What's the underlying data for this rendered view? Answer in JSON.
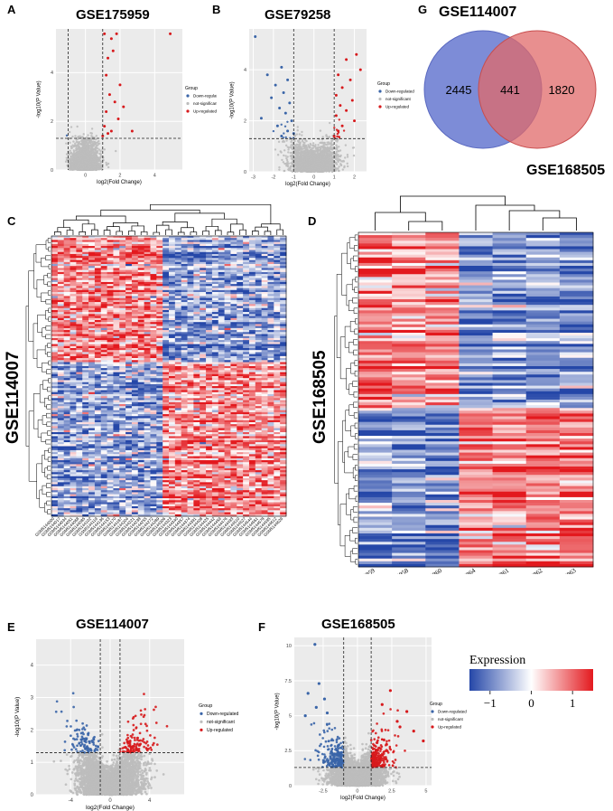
{
  "panels": {
    "A": {
      "letter": "A",
      "title": "GSE175959"
    },
    "B": {
      "letter": "B",
      "title": "GSE79258"
    },
    "G": {
      "letter": "G",
      "title_top": "GSE114007",
      "title_bottom": "GSE168505"
    },
    "C": {
      "letter": "C",
      "title": "GSE114007"
    },
    "D": {
      "letter": "D",
      "title": "GSE168505"
    },
    "E": {
      "letter": "E",
      "title": "GSE114007"
    },
    "F": {
      "letter": "F",
      "title": "GSE168505"
    }
  },
  "volcano_text": {
    "xlabel": "log2(Fold Change)",
    "ylabel": "-log10(P Value)",
    "legend_title": "Group",
    "groups": [
      "Down-regulated",
      "not-significant",
      "Up-regulated"
    ]
  },
  "colors": {
    "down": "#3a65a8",
    "ns": "#bdbdbd",
    "up": "#d7191c",
    "venn_left": "#6f7fd3",
    "venn_right": "#e06a6a",
    "heat_low": "#2547a8",
    "heat_mid": "#ffffff",
    "heat_high": "#e3191e"
  },
  "chart_data": [
    {
      "id": "A",
      "type": "scatter",
      "subtype": "volcano",
      "title": "GSE175959",
      "xlim": [
        -1.7,
        5.6
      ],
      "ylim": [
        0,
        5.8
      ],
      "xticks": [
        0,
        2,
        4
      ],
      "yticks": [
        0,
        2,
        4
      ],
      "thresholds": {
        "x": [
          -1,
          1
        ],
        "y": 1.3
      },
      "legend": "right",
      "series": [
        {
          "name": "Down-regulated",
          "values": []
        },
        {
          "name": "not-significant",
          "values": []
        },
        {
          "name": "Up-regulated",
          "values": [
            [
              1.1,
              5.6
            ],
            [
              1.5,
              5.4
            ],
            [
              1.8,
              5.6
            ],
            [
              4.9,
              5.6
            ],
            [
              1.6,
              4.9
            ],
            [
              1.3,
              4.6
            ],
            [
              1.2,
              3.9
            ],
            [
              2.0,
              3.5
            ],
            [
              1.4,
              3.1
            ],
            [
              1.7,
              2.8
            ],
            [
              2.2,
              2.6
            ],
            [
              1.2,
              2.4
            ],
            [
              1.9,
              2.1
            ],
            [
              1.1,
              1.8
            ],
            [
              1.5,
              1.6
            ],
            [
              2.7,
              1.6
            ],
            [
              1.3,
              1.5
            ],
            [
              1.0,
              1.4
            ]
          ]
        }
      ]
    },
    {
      "id": "B",
      "type": "scatter",
      "subtype": "volcano",
      "title": "GSE79258",
      "xlim": [
        -3.2,
        2.6
      ],
      "ylim": [
        0,
        5.6
      ],
      "xticks": [
        -3,
        -2,
        -1,
        0,
        1,
        2
      ],
      "yticks": [
        0,
        2,
        4
      ],
      "thresholds": {
        "x": [
          -1,
          1
        ],
        "y": 1.3
      },
      "legend": "right",
      "series": [
        {
          "name": "Down-regulated",
          "values": [
            [
              -2.9,
              5.3
            ],
            [
              -1.6,
              4.1
            ],
            [
              -2.3,
              3.8
            ],
            [
              -1.3,
              3.6
            ],
            [
              -1.9,
              3.4
            ],
            [
              -1.5,
              3.1
            ],
            [
              -2.1,
              2.9
            ],
            [
              -1.2,
              2.7
            ],
            [
              -1.7,
              2.5
            ],
            [
              -1.4,
              2.3
            ],
            [
              -2.6,
              2.1
            ],
            [
              -1.1,
              2.0
            ],
            [
              -1.8,
              1.8
            ],
            [
              -1.3,
              1.6
            ],
            [
              -1.0,
              1.5
            ],
            [
              -1.6,
              1.4
            ]
          ]
        },
        {
          "name": "not-significant",
          "values": []
        },
        {
          "name": "Up-regulated",
          "values": [
            [
              2.1,
              4.6
            ],
            [
              1.6,
              4.4
            ],
            [
              2.3,
              4.0
            ],
            [
              1.2,
              3.8
            ],
            [
              1.8,
              3.6
            ],
            [
              1.4,
              3.3
            ],
            [
              1.1,
              3.0
            ],
            [
              1.9,
              2.8
            ],
            [
              1.3,
              2.6
            ],
            [
              1.6,
              2.4
            ],
            [
              1.1,
              2.2
            ],
            [
              2.0,
              2.0
            ],
            [
              1.4,
              1.8
            ],
            [
              1.2,
              1.6
            ],
            [
              1.0,
              1.4
            ]
          ]
        }
      ]
    },
    {
      "id": "G",
      "type": "venn",
      "sets": [
        "GSE114007",
        "GSE168505"
      ],
      "values": {
        "left_only": 2445,
        "intersection": 441,
        "right_only": 1820
      }
    },
    {
      "id": "C",
      "type": "heatmap",
      "dataset": "GSE114007",
      "columns": 38,
      "column_labels_prefix": "GSM",
      "color_scale": [
        -1.5,
        1.5
      ]
    },
    {
      "id": "D",
      "type": "heatmap",
      "dataset": "GSE168505",
      "column_labels": [
        "GSM5144859",
        "GSM5144858",
        "GSM5144860",
        "GSM5144864",
        "GSM5144861",
        "GSM5144862",
        "GSM5144863"
      ],
      "color_scale": [
        -1.5,
        1.5
      ]
    },
    {
      "id": "legend",
      "type": "colorbar",
      "title": "Expression",
      "ticks": [
        "-1",
        "0",
        "1"
      ],
      "range": [
        -1.5,
        1.5
      ]
    },
    {
      "id": "E",
      "type": "scatter",
      "subtype": "volcano",
      "title": "GSE114007",
      "xlim": [
        -7.5,
        7.5
      ],
      "ylim": [
        0,
        4.8
      ],
      "xticks": [
        -4,
        0,
        4
      ],
      "yticks": [
        0,
        1,
        2,
        3,
        4
      ],
      "thresholds": {
        "x": [
          -1,
          1
        ],
        "y": 1.3
      },
      "legend": "right",
      "series": [
        {
          "name": "Down-regulated",
          "values": []
        },
        {
          "name": "not-significant",
          "values": []
        },
        {
          "name": "Up-regulated",
          "values": []
        }
      ]
    },
    {
      "id": "F",
      "type": "scatter",
      "subtype": "volcano",
      "title": "GSE168505",
      "xlim": [
        -4.6,
        5.4
      ],
      "ylim": [
        0,
        10.6
      ],
      "xticks": [
        -2.5,
        0.0,
        2.5,
        5.0
      ],
      "yticks": [
        0.0,
        2.5,
        5.0,
        7.5,
        10.0
      ],
      "thresholds": {
        "x": [
          -1,
          1
        ],
        "y": 1.3
      },
      "legend": "right",
      "series": [
        {
          "name": "Down-regulated",
          "values": [
            [
              -3.1,
              10.1
            ],
            [
              -2.8,
              7.3
            ],
            [
              -3.6,
              6.6
            ],
            [
              -2.4,
              6.2
            ],
            [
              -3.0,
              5.6
            ],
            [
              -2.2,
              5.2
            ],
            [
              -3.8,
              5.0
            ]
          ]
        },
        {
          "name": "not-significant",
          "values": []
        },
        {
          "name": "Up-regulated",
          "values": [
            [
              2.4,
              6.8
            ],
            [
              3.6,
              5.3
            ],
            [
              1.8,
              5.8
            ],
            [
              4.8,
              3.2
            ],
            [
              2.9,
              4.6
            ],
            [
              3.1,
              4.2
            ],
            [
              4.1,
              3.9
            ]
          ]
        }
      ]
    }
  ]
}
